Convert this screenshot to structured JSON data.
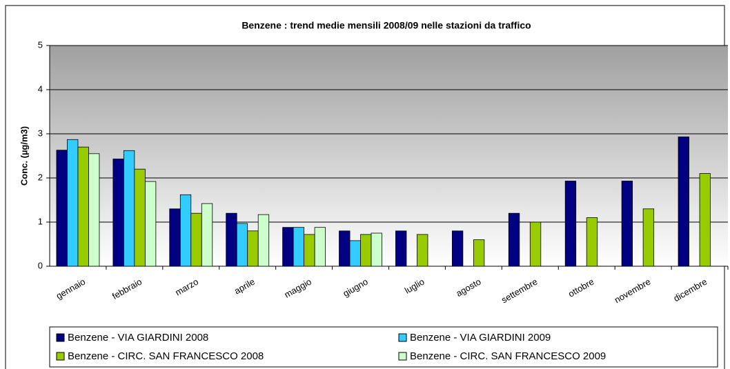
{
  "chart_data": {
    "type": "bar",
    "title": "Benzene : trend medie mensili 2008/09 nelle stazioni da traffico",
    "y_label": "Conc. (µg/m3)",
    "categories": [
      "gennaio",
      "febbraio",
      "marzo",
      "aprile",
      "maggio",
      "giugno",
      "luglio",
      "agosto",
      "settembre",
      "ottobre",
      "novembre",
      "dicembre"
    ],
    "series": [
      {
        "name": "Benzene - VIA GIARDINI 2008",
        "color": "#000080",
        "values": [
          2.63,
          2.43,
          1.3,
          1.2,
          0.88,
          0.8,
          0.8,
          0.8,
          1.2,
          1.93,
          1.93,
          2.93
        ]
      },
      {
        "name": "Benzene - VIA GIARDINI 2009",
        "color": "#33ccff",
        "values": [
          2.87,
          2.62,
          1.62,
          0.97,
          0.88,
          0.58,
          null,
          null,
          null,
          null,
          null,
          null
        ]
      },
      {
        "name": "Benzene - CIRC. SAN FRANCESCO 2008",
        "color": "#99cc00",
        "values": [
          2.7,
          2.2,
          1.2,
          0.8,
          0.72,
          0.72,
          0.72,
          0.6,
          1.0,
          1.1,
          1.3,
          2.1
        ]
      },
      {
        "name": "Benzene - CIRC. SAN FRANCESCO 2009",
        "color": "#ccffcc",
        "values": [
          2.55,
          1.92,
          1.42,
          1.17,
          0.88,
          0.75,
          null,
          null,
          null,
          null,
          null,
          null
        ]
      }
    ],
    "ylim": [
      0,
      5
    ],
    "yticks": [
      0,
      1,
      2,
      3,
      4,
      5
    ],
    "grid": true,
    "legend": "bottom"
  }
}
